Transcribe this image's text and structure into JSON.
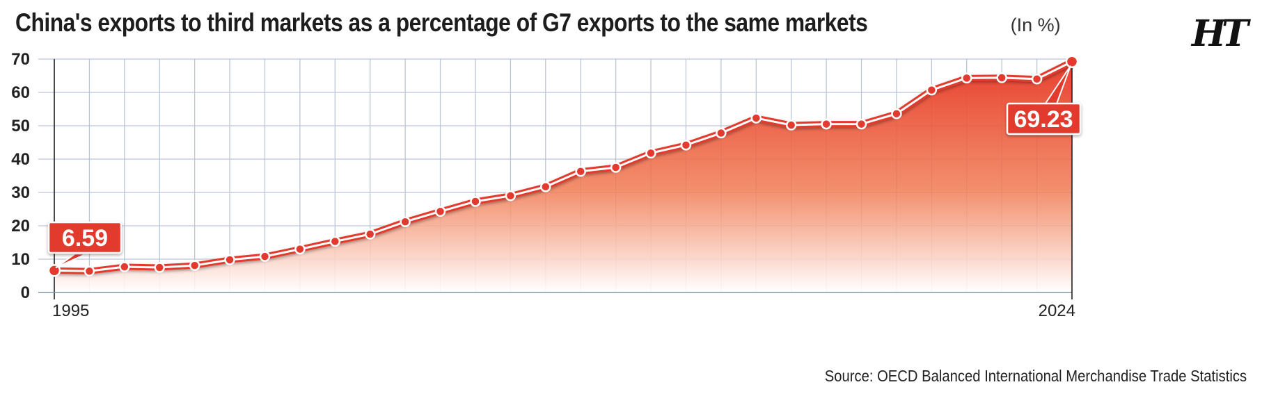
{
  "title": "China's exports to third markets as a percentage of G7 exports to the same markets",
  "unit": "(In %)",
  "logo": "HT",
  "source": "Source: OECD Balanced International Merchandise Trade Statistics",
  "colors": {
    "line": "#e23a2e",
    "fill_top": "#e8402f",
    "fill_bottom": "#ffffff",
    "grid": "#b9c6d3",
    "callout": "#e23a2e"
  },
  "chart_data": {
    "type": "area",
    "title": "China's exports to third markets as a percentage of G7 exports to the same markets",
    "ylabel": "(In %)",
    "xlabel": "",
    "ylim": [
      0,
      70
    ],
    "yticks": [
      0,
      10,
      20,
      30,
      40,
      50,
      60,
      70
    ],
    "grid": true,
    "x": [
      1995,
      1996,
      1997,
      1998,
      1999,
      2000,
      2001,
      2002,
      2003,
      2004,
      2005,
      2006,
      2007,
      2008,
      2009,
      2010,
      2011,
      2012,
      2013,
      2014,
      2015,
      2016,
      2017,
      2018,
      2019,
      2020,
      2021,
      2022,
      2023,
      2024
    ],
    "x_tick_labels": [
      "1995",
      "2024"
    ],
    "series": [
      {
        "values": [
          6.59,
          6.4,
          7.7,
          7.5,
          8.1,
          9.8,
          10.8,
          13.0,
          15.3,
          17.5,
          21.2,
          24.3,
          27.3,
          29.0,
          31.7,
          36.3,
          37.5,
          41.8,
          44.2,
          47.8,
          52.3,
          50.2,
          50.5,
          50.5,
          53.6,
          60.7,
          64.3,
          64.4,
          64.0,
          69.23
        ]
      }
    ],
    "annotations": [
      {
        "x": 1995,
        "label": "6.59"
      },
      {
        "x": 2024,
        "label": "69.23"
      }
    ]
  }
}
